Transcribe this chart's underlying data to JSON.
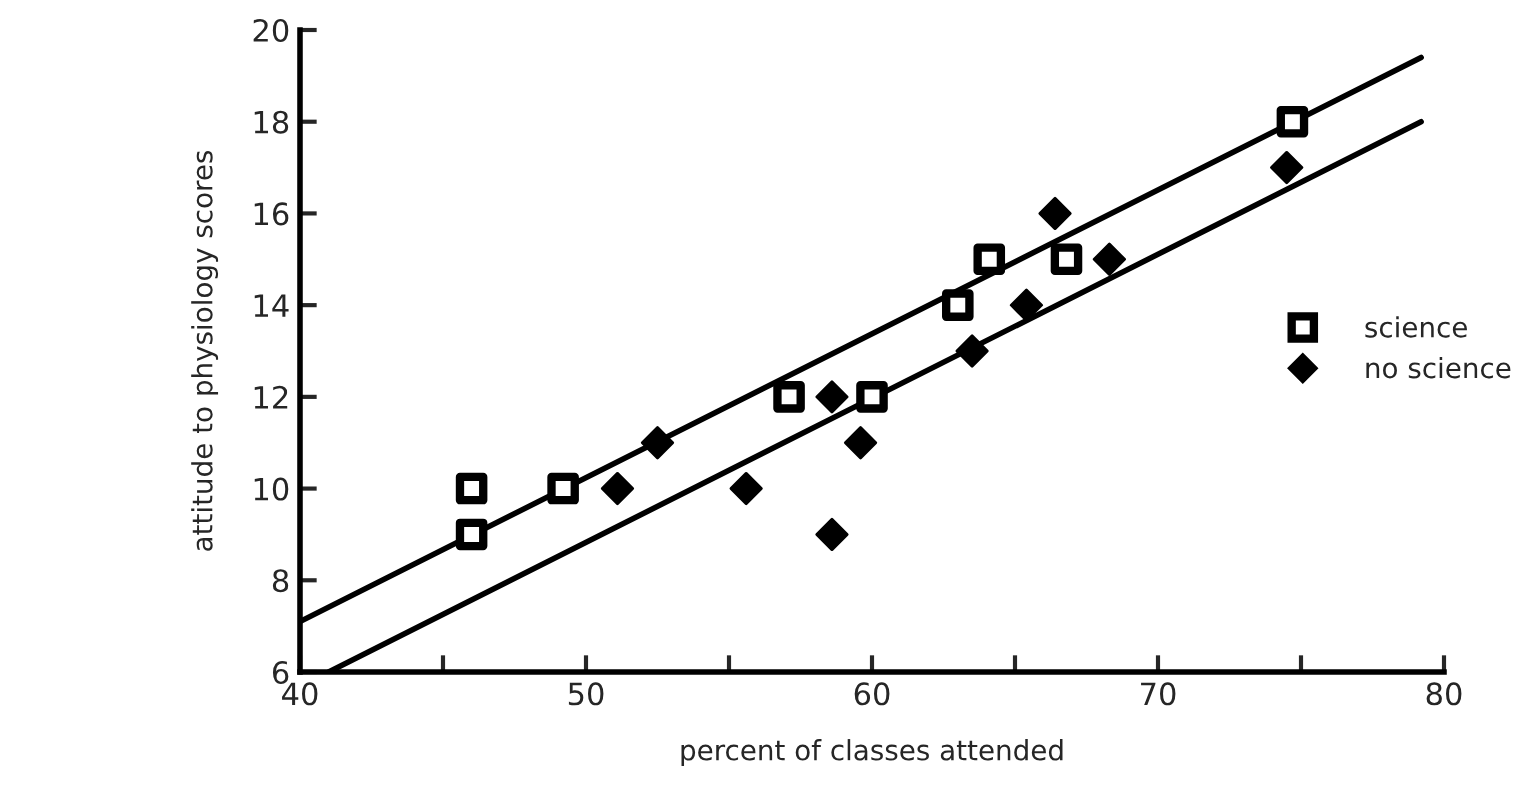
{
  "chart_data": {
    "type": "scatter",
    "xlabel": "percent of classes attended",
    "ylabel": "attitude to physiology scores",
    "xlim": [
      40,
      80
    ],
    "ylim": [
      6,
      20
    ],
    "xticks": [
      40,
      {
        "value": 45,
        "label": null
      },
      50,
      {
        "value": 55,
        "label": null
      },
      60,
      {
        "value": 65,
        "label": null
      },
      70,
      {
        "value": 75,
        "label": null
      },
      80
    ],
    "yticks": [
      6,
      8,
      10,
      12,
      14,
      16,
      18,
      20
    ],
    "grid": false,
    "legend": "right",
    "series": [
      {
        "name": "science",
        "marker": "square",
        "color": "#000000",
        "x": [
          46,
          46,
          49.2,
          57.1,
          60,
          63,
          64.1,
          66.8,
          74.7
        ],
        "values": [
          10,
          9,
          10,
          12,
          12,
          14,
          15,
          15,
          18
        ]
      },
      {
        "name": "no science",
        "marker": "diamond",
        "color": "#000000",
        "x": [
          51.1,
          52.5,
          55.6,
          58.6,
          58.6,
          59.6,
          63.5,
          65.4,
          66.4,
          68.3,
          74.5
        ],
        "values": [
          10,
          11,
          10,
          12,
          9,
          11,
          13,
          14,
          16,
          15,
          17
        ]
      },
      {
        "type": "line",
        "marker": "none",
        "line_style": "solid",
        "color": "#000000",
        "x": [
          40,
          79.2
        ],
        "values": [
          7.1,
          19.4
        ]
      },
      {
        "type": "line",
        "marker": "none",
        "line_style": "solid",
        "color": "#000000",
        "x": [
          41,
          79.2
        ],
        "values": [
          6,
          18
        ]
      }
    ]
  }
}
